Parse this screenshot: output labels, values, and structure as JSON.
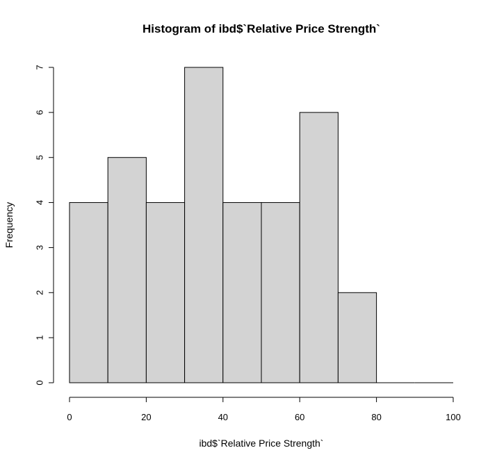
{
  "chart_data": {
    "type": "bar",
    "title": "Histogram of ibd$`Relative Price Strength`",
    "xlabel": "ibd$`Relative Price Strength`",
    "ylabel": "Frequency",
    "bins": [
      {
        "from": 0,
        "to": 10,
        "count": 4
      },
      {
        "from": 10,
        "to": 20,
        "count": 5
      },
      {
        "from": 20,
        "to": 30,
        "count": 4
      },
      {
        "from": 30,
        "to": 40,
        "count": 7
      },
      {
        "from": 40,
        "to": 50,
        "count": 4
      },
      {
        "from": 50,
        "to": 60,
        "count": 4
      },
      {
        "from": 60,
        "to": 70,
        "count": 6
      },
      {
        "from": 70,
        "to": 80,
        "count": 2
      },
      {
        "from": 80,
        "to": 90,
        "count": 0
      },
      {
        "from": 90,
        "to": 100,
        "count": 0
      }
    ],
    "xlim": [
      0,
      100
    ],
    "ylim": [
      0,
      7
    ],
    "xticks": [
      "0",
      "20",
      "40",
      "60",
      "80",
      "100"
    ],
    "yticks": [
      "0",
      "1",
      "2",
      "3",
      "4",
      "5",
      "6",
      "7"
    ],
    "grid": false,
    "colors": {
      "bar_fill": "#d3d3d3",
      "bar_stroke": "#000000"
    }
  }
}
